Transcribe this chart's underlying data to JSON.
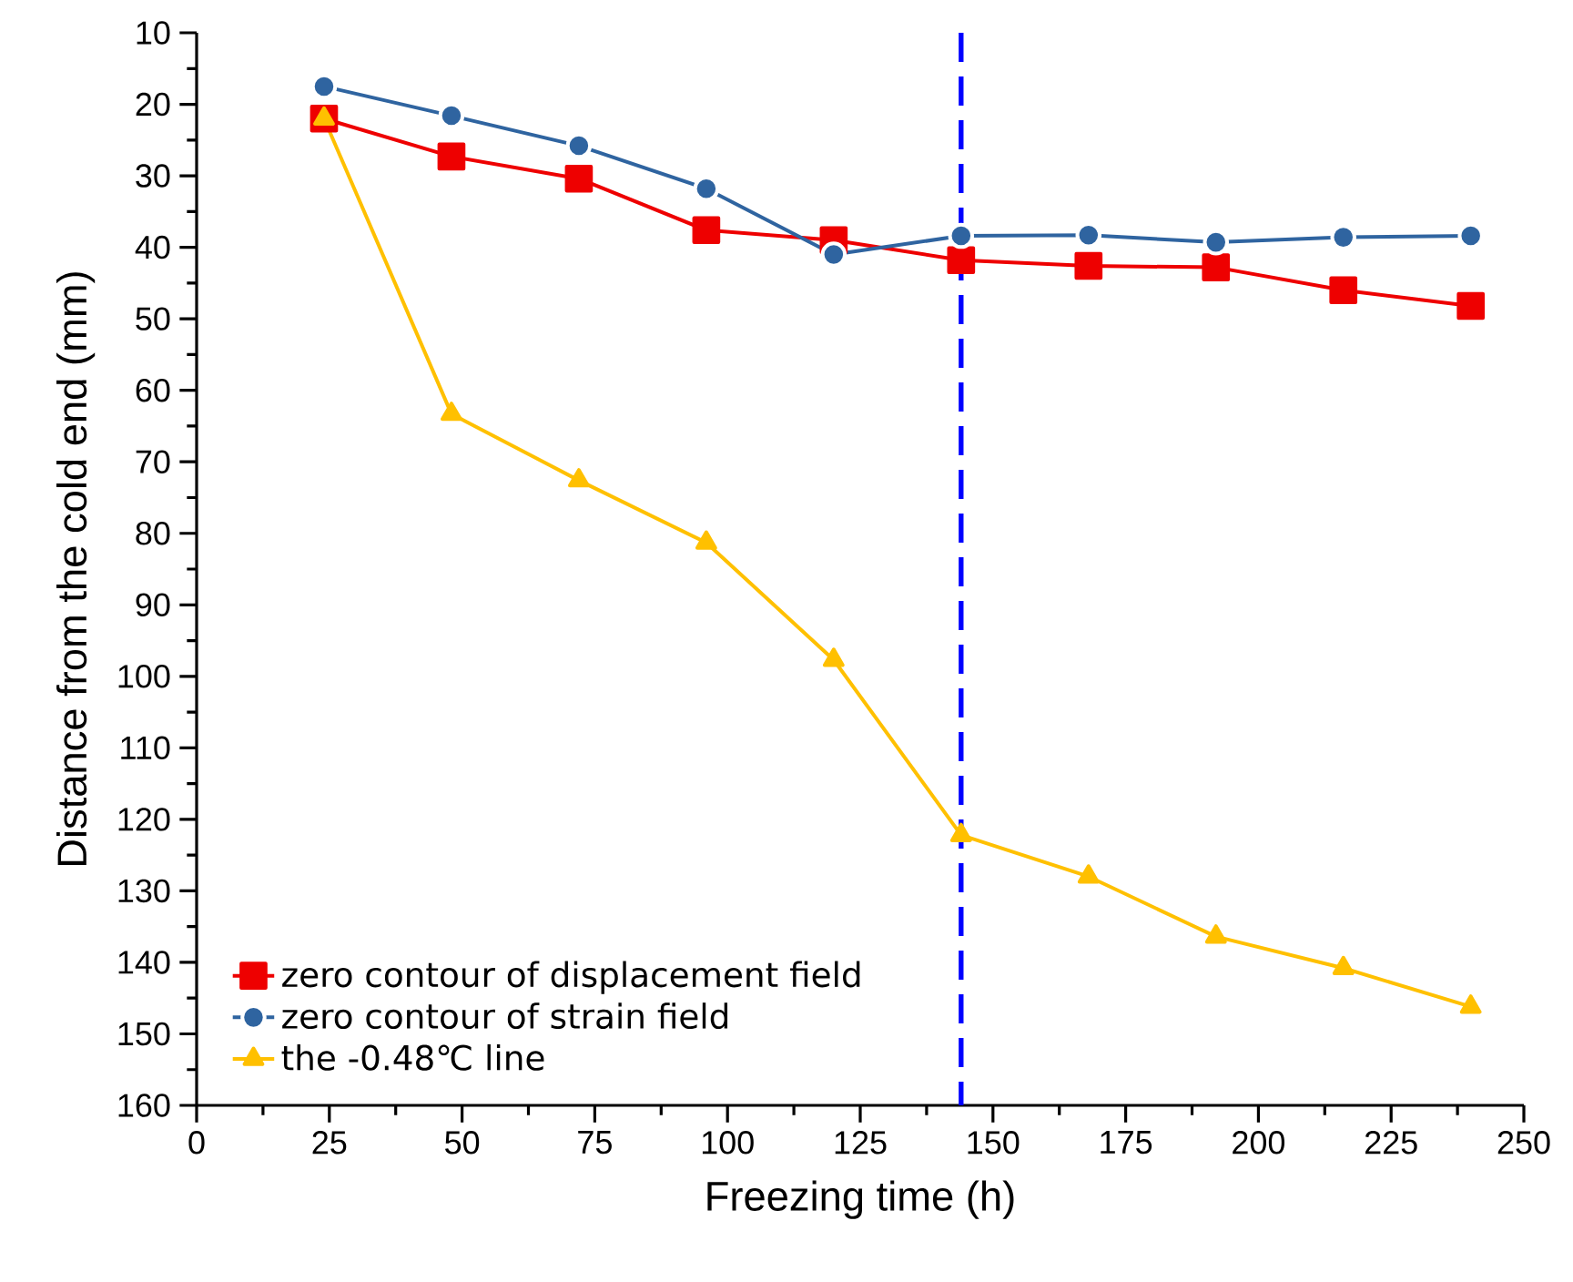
{
  "chart_data": {
    "type": "line",
    "xlabel": "Freezing time (h)",
    "ylabel": "Distance from the cold end (mm)",
    "x": [
      24,
      48,
      72,
      96,
      120,
      144,
      168,
      192,
      216,
      240
    ],
    "series": [
      {
        "name": "zero contour of  displacement field",
        "color": "#ee0000",
        "marker": "square",
        "values": [
          22,
          27.3,
          30.4,
          37.6,
          39,
          41.8,
          42.6,
          42.8,
          46,
          48.2
        ]
      },
      {
        "name": "zero contour of  strain field",
        "color": "#2f64a0",
        "marker": "circle",
        "values": [
          17.5,
          21.6,
          25.8,
          31.8,
          41,
          38.4,
          38.3,
          39.3,
          38.6,
          38.4
        ]
      },
      {
        "name": "the -0.48℃ line",
        "color": "#ffc000",
        "marker": "triangle",
        "values": [
          22,
          63.3,
          72.6,
          81.3,
          97.7,
          122.2,
          128,
          136.4,
          140.8,
          146.2
        ]
      }
    ],
    "xlim": [
      0,
      250
    ],
    "xticks": [
      0,
      25,
      50,
      75,
      100,
      125,
      150,
      175,
      200,
      225,
      250
    ],
    "ylim": [
      160,
      10
    ],
    "yticks": [
      10,
      20,
      30,
      40,
      50,
      60,
      70,
      80,
      90,
      100,
      110,
      120,
      130,
      140,
      150,
      160
    ],
    "ref_lines": [
      {
        "axis": "x",
        "value": 144,
        "color": "#0000ff",
        "line_style": "dashed"
      }
    ],
    "grid": false,
    "legend": "bottom left",
    "line_style": "solid"
  }
}
